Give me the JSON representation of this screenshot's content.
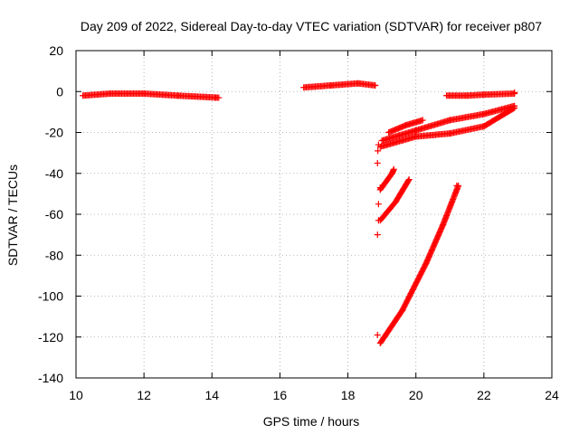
{
  "chart_data": {
    "type": "scatter",
    "title": "Day 209 of 2022, Sidereal Day-to-day VTEC variation (SDTVAR) for receiver p807",
    "xlabel": "GPS time / hours",
    "ylabel": "SDTVAR / TECUs",
    "xlim": [
      10,
      24
    ],
    "ylim": [
      -140,
      20
    ],
    "x_ticks": [
      "10",
      "12",
      "14",
      "16",
      "18",
      "20",
      "22",
      "24"
    ],
    "y_ticks": [
      "20",
      "0",
      "-20",
      "-40",
      "-60",
      "-80",
      "-100",
      "-120",
      "-140"
    ],
    "grid": true,
    "marker": "+",
    "series": [
      {
        "color": "#ff0000",
        "segments": [
          [
            [
              10.2,
              -2
            ],
            [
              11.0,
              -1
            ],
            [
              12.0,
              -1
            ],
            [
              13.0,
              -2
            ],
            [
              14.2,
              -3
            ]
          ],
          [
            [
              16.7,
              2
            ],
            [
              17.5,
              3
            ],
            [
              18.3,
              4
            ],
            [
              18.8,
              3
            ]
          ],
          [
            [
              20.9,
              -2
            ],
            [
              21.5,
              -2
            ],
            [
              22.0,
              -1.5
            ],
            [
              22.9,
              -1
            ]
          ],
          [
            [
              18.95,
              -27
            ],
            [
              20.0,
              -22
            ],
            [
              21.0,
              -20.5
            ],
            [
              22.0,
              -17
            ],
            [
              22.9,
              -8
            ]
          ],
          [
            [
              19.0,
              -24
            ],
            [
              20.0,
              -19
            ],
            [
              21.0,
              -14
            ],
            [
              22.0,
              -11
            ],
            [
              22.9,
              -7
            ]
          ],
          [
            [
              19.2,
              -20
            ],
            [
              19.7,
              -16.5
            ],
            [
              20.2,
              -14
            ]
          ],
          [
            [
              18.95,
              -48
            ],
            [
              19.3,
              -40
            ],
            [
              19.35,
              -38
            ]
          ],
          [
            [
              18.95,
              -63
            ],
            [
              19.4,
              -54
            ],
            [
              19.8,
              -43
            ]
          ],
          [
            [
              18.95,
              -123
            ],
            [
              19.6,
              -107
            ],
            [
              20.3,
              -84
            ],
            [
              20.8,
              -65
            ],
            [
              21.25,
              -46
            ]
          ]
        ],
        "points": [
          [
            18.9,
            -26
          ],
          [
            18.88,
            -29
          ],
          [
            18.87,
            -35
          ],
          [
            18.9,
            -55
          ],
          [
            18.87,
            -70
          ],
          [
            18.87,
            -119
          ],
          [
            18.95,
            -47
          ],
          [
            18.9,
            -63
          ],
          [
            21.2,
            -46
          ],
          [
            22.9,
            -0.5
          ],
          [
            14.1,
            -3
          ],
          [
            18.8,
            3
          ]
        ]
      }
    ]
  }
}
